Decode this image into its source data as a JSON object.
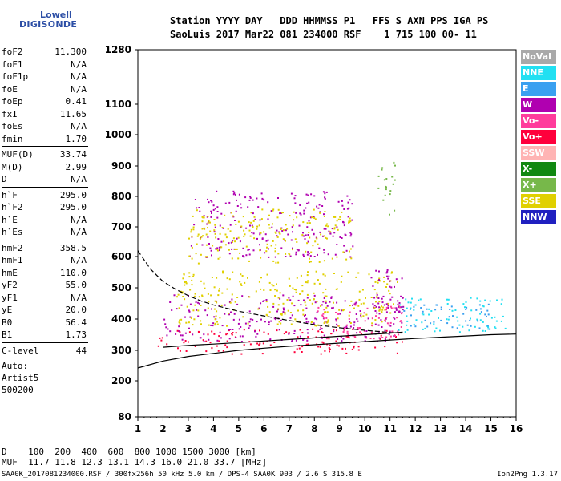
{
  "logo": {
    "line1": "Lowell",
    "line2": "DIGISONDE"
  },
  "header": {
    "line1": "Station YYYY DAY   DDD HHMMSS P1   FFS S AXN PPS IGA PS",
    "line2": "SaoLuis 2017 Mar22 081 234000 RSF    1 715 100 00- 11"
  },
  "params": {
    "group1": [
      {
        "k": "foF2",
        "v": "11.300"
      },
      {
        "k": "foF1",
        "v": "N/A"
      },
      {
        "k": "foF1p",
        "v": "N/A"
      },
      {
        "k": "foE",
        "v": "N/A"
      },
      {
        "k": "foEp",
        "v": "0.41"
      },
      {
        "k": "fxI",
        "v": "11.65"
      },
      {
        "k": "foEs",
        "v": "N/A"
      },
      {
        "k": "fmin",
        "v": "1.70"
      }
    ],
    "group2": [
      {
        "k": "MUF(D)",
        "v": "33.74"
      },
      {
        "k": "M(D)",
        "v": "2.99"
      },
      {
        "k": "D",
        "v": "N/A"
      }
    ],
    "group3": [
      {
        "k": "h`F",
        "v": "295.0"
      },
      {
        "k": "h`F2",
        "v": "295.0"
      },
      {
        "k": "h`E",
        "v": "N/A"
      },
      {
        "k": "h`Es",
        "v": "N/A"
      }
    ],
    "group4": [
      {
        "k": "hmF2",
        "v": "358.5"
      },
      {
        "k": "hmF1",
        "v": "N/A"
      },
      {
        "k": "hmE",
        "v": "110.0"
      },
      {
        "k": "yF2",
        "v": "55.0"
      },
      {
        "k": "yF1",
        "v": "N/A"
      },
      {
        "k": "yE",
        "v": "20.0"
      },
      {
        "k": "B0",
        "v": "56.4"
      },
      {
        "k": "B1",
        "v": "1.73"
      }
    ],
    "clevel": {
      "k": "C-level",
      "v": "44"
    },
    "auto": [
      "Auto:",
      "Artist5",
      "500200"
    ]
  },
  "legend": [
    {
      "label": "NoVal",
      "color": "#a9a9a9"
    },
    {
      "label": "NNE",
      "color": "#22e0f2"
    },
    {
      "label": "E",
      "color": "#3aa0f0"
    },
    {
      "label": "W",
      "color": "#b000b0"
    },
    {
      "label": "Vo-",
      "color": "#ff3c9c"
    },
    {
      "label": "Vo+",
      "color": "#ff003c"
    },
    {
      "label": "SSW",
      "color": "#ffb4b4"
    },
    {
      "label": "X-",
      "color": "#118811"
    },
    {
      "label": "X+",
      "color": "#77b84a"
    },
    {
      "label": "SSE",
      "color": "#e0d000"
    },
    {
      "label": "NNW",
      "color": "#2020c0"
    }
  ],
  "chart_data": {
    "type": "scatter",
    "xlim": [
      1,
      16
    ],
    "ylim": [
      80,
      1280
    ],
    "x_ticks": [
      "1",
      "2",
      "3",
      "4",
      "5",
      "6",
      "7",
      "8",
      "9",
      "10",
      "11",
      "12",
      "13",
      "14",
      "15",
      "16"
    ],
    "y_ticks": [
      "80",
      "200",
      "300",
      "400",
      "500",
      "600",
      "700",
      "800",
      "900",
      "1000",
      "1100",
      "1280"
    ],
    "y_tick_values": [
      80,
      200,
      300,
      400,
      500,
      600,
      700,
      800,
      900,
      1000,
      1100,
      1280
    ],
    "y_scale": "nonlinear (expanded at low heights)",
    "grid": false,
    "clusters": [
      {
        "series": "Vo+",
        "x": [
          1.7,
          11.5
        ],
        "y": [
          290,
          370
        ]
      },
      {
        "series": "W",
        "x": [
          2.0,
          11.5
        ],
        "y": [
          330,
          480
        ]
      },
      {
        "series": "SSE",
        "x": [
          2.5,
          11.3
        ],
        "y": [
          380,
          560
        ]
      },
      {
        "series": "W",
        "x": [
          3.0,
          9.5
        ],
        "y": [
          600,
          820
        ]
      },
      {
        "series": "SSE",
        "x": [
          3.0,
          9.5
        ],
        "y": [
          580,
          760
        ]
      },
      {
        "series": "NNE",
        "x": [
          11.3,
          15.6
        ],
        "y": [
          360,
          470
        ]
      },
      {
        "series": "E",
        "x": [
          11.5,
          15.0
        ],
        "y": [
          370,
          450
        ]
      },
      {
        "series": "W",
        "x": [
          10.2,
          11.5
        ],
        "y": [
          380,
          560
        ]
      },
      {
        "series": "Vo-",
        "x": [
          8.0,
          11.5
        ],
        "y": [
          330,
          450
        ]
      },
      {
        "series": "X+",
        "x": [
          10.5,
          11.2
        ],
        "y": [
          740,
          920
        ]
      }
    ],
    "traces": [
      {
        "name": "lower profile",
        "x": [
          1,
          2,
          3,
          4,
          5,
          6,
          7,
          8,
          9,
          10,
          11,
          12,
          13,
          14,
          15,
          16
        ],
        "y": [
          242,
          265,
          280,
          290,
          300,
          307,
          313,
          318,
          323,
          328,
          333,
          338,
          342,
          346,
          350,
          352
        ]
      },
      {
        "name": "dashed profile",
        "x": [
          1,
          1.5,
          2,
          2.5,
          3,
          3.5,
          4,
          4.5,
          5,
          6,
          7,
          8,
          9,
          10,
          11,
          11.5
        ],
        "y": [
          620,
          560,
          520,
          495,
          475,
          458,
          445,
          435,
          425,
          410,
          395,
          382,
          372,
          364,
          357,
          355
        ]
      },
      {
        "name": "trace",
        "x": [
          2.0,
          3,
          4,
          5,
          6,
          7,
          8,
          9,
          10,
          11,
          11.5
        ],
        "y": [
          310,
          316,
          320,
          325,
          330,
          335,
          340,
          345,
          350,
          355,
          358
        ]
      }
    ]
  },
  "bottom": {
    "line1": "D    100  200  400  600  800 1000 1500 3000 [km]",
    "line2": "MUF  11.7 11.8 12.3 13.1 14.3 16.0 21.0 33.7 [MHz]"
  },
  "footer": "SAA0K_2017081234000.RSF / 300fx256h 50 kHz 5.0 km / DPS-4 SAA0K 903 / 2.6 S 315.8 E",
  "version": "Ion2Png 1.3.17"
}
